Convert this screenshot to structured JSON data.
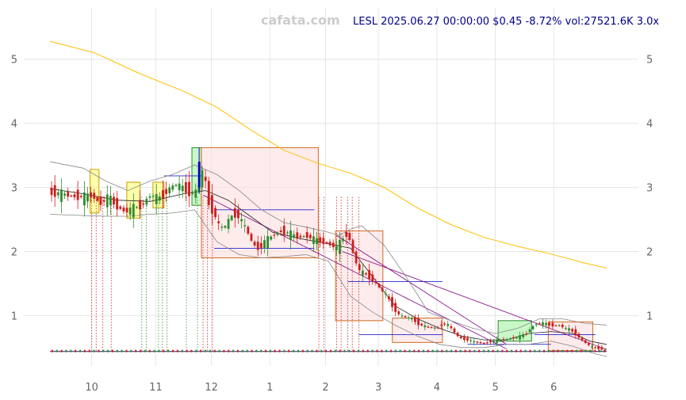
{
  "header": {
    "watermark": "cafata.com",
    "ticker_info": "LESL 2025.06.27 00:00:00 $0.45 -8.72% vol:27521.6K 3.0x"
  },
  "chart_data": {
    "type": "candlestick",
    "x_ticks": [
      "10",
      "11",
      "12",
      "1",
      "2",
      "3",
      "4",
      "5",
      "6"
    ],
    "y_ticks": [
      1,
      2,
      3,
      4,
      5
    ],
    "ylim": [
      0.3,
      5.8
    ],
    "xlim": [
      0,
      100
    ],
    "grid": true,
    "colors": {
      "up": "#2e8b2e",
      "down": "#d01c1c",
      "ma_long": "#ffc000",
      "ma_short": "#222222",
      "band": "#888888",
      "diag": "#800080",
      "level": "#0000cc"
    },
    "price_path": [
      [
        0,
        2.92
      ],
      [
        2,
        2.9
      ],
      [
        4,
        2.86
      ],
      [
        6,
        2.85
      ],
      [
        7.5,
        2.88
      ],
      [
        9,
        2.75
      ],
      [
        10.5,
        2.85
      ],
      [
        12,
        2.7
      ],
      [
        13.5,
        2.62
      ],
      [
        15,
        2.68
      ],
      [
        16.5,
        2.72
      ],
      [
        18,
        2.88
      ],
      [
        19.5,
        2.82
      ],
      [
        21,
        2.95
      ],
      [
        22.5,
        3.05
      ],
      [
        24,
        2.98
      ],
      [
        25.5,
        2.9
      ],
      [
        26.5,
        2.95
      ],
      [
        27.5,
        3.3
      ],
      [
        28.5,
        2.75
      ],
      [
        29.5,
        2.6
      ],
      [
        30.5,
        2.35
      ],
      [
        31.5,
        2.4
      ],
      [
        32.5,
        2.55
      ],
      [
        33.5,
        2.6
      ],
      [
        34.5,
        2.45
      ],
      [
        35.5,
        2.3
      ],
      [
        36.5,
        2.1
      ],
      [
        37.5,
        2.05
      ],
      [
        38.5,
        2.15
      ],
      [
        40,
        2.25
      ],
      [
        41.5,
        2.32
      ],
      [
        43,
        2.28
      ],
      [
        44.5,
        2.22
      ],
      [
        46,
        2.25
      ],
      [
        47.5,
        2.18
      ],
      [
        49,
        2.15
      ],
      [
        50.5,
        2.1
      ],
      [
        51.5,
        2.05
      ],
      [
        52.5,
        2.2
      ],
      [
        53.5,
        2.3
      ],
      [
        54.5,
        1.95
      ],
      [
        55.5,
        1.7
      ],
      [
        56.5,
        1.65
      ],
      [
        57.5,
        1.6
      ],
      [
        58.5,
        1.5
      ],
      [
        59.5,
        1.4
      ],
      [
        60.5,
        1.3
      ],
      [
        61.5,
        1.15
      ],
      [
        62.5,
        1.02
      ],
      [
        63.5,
        0.98
      ],
      [
        65,
        0.95
      ],
      [
        66.5,
        0.85
      ],
      [
        68,
        0.82
      ],
      [
        69.5,
        0.8
      ],
      [
        70.5,
        0.88
      ],
      [
        71.5,
        0.85
      ],
      [
        72.5,
        0.75
      ],
      [
        73.5,
        0.65
      ],
      [
        75,
        0.62
      ],
      [
        76.5,
        0.58
      ],
      [
        78,
        0.57
      ],
      [
        79.5,
        0.6
      ],
      [
        81,
        0.62
      ],
      [
        82.5,
        0.64
      ],
      [
        84,
        0.66
      ],
      [
        85.5,
        0.72
      ],
      [
        86.5,
        0.82
      ],
      [
        87.5,
        0.88
      ],
      [
        88.5,
        0.88
      ],
      [
        89.5,
        0.86
      ],
      [
        90.5,
        0.84
      ],
      [
        91.5,
        0.85
      ],
      [
        92.5,
        0.8
      ],
      [
        93.5,
        0.78
      ],
      [
        94.5,
        0.7
      ],
      [
        95.5,
        0.62
      ],
      [
        96.5,
        0.55
      ],
      [
        97.5,
        0.5
      ],
      [
        98.5,
        0.49
      ],
      [
        99.5,
        0.47
      ],
      [
        100,
        0.45
      ]
    ],
    "ma_long": [
      [
        0,
        5.28
      ],
      [
        8,
        5.1
      ],
      [
        16,
        4.78
      ],
      [
        24,
        4.5
      ],
      [
        30,
        4.25
      ],
      [
        36,
        3.9
      ],
      [
        42,
        3.58
      ],
      [
        48,
        3.38
      ],
      [
        54,
        3.22
      ],
      [
        60,
        3.0
      ],
      [
        66,
        2.68
      ],
      [
        72,
        2.42
      ],
      [
        78,
        2.22
      ],
      [
        84,
        2.08
      ],
      [
        90,
        1.96
      ],
      [
        96,
        1.82
      ],
      [
        100,
        1.74
      ]
    ],
    "ma_short": [
      [
        0,
        2.98
      ],
      [
        6,
        2.9
      ],
      [
        12,
        2.8
      ],
      [
        18,
        2.78
      ],
      [
        24,
        2.9
      ],
      [
        28,
        2.95
      ],
      [
        32,
        2.8
      ],
      [
        36,
        2.55
      ],
      [
        40,
        2.3
      ],
      [
        45,
        2.2
      ],
      [
        50,
        2.12
      ],
      [
        54,
        2.05
      ],
      [
        58,
        1.6
      ],
      [
        62,
        1.15
      ],
      [
        66,
        0.95
      ],
      [
        70,
        0.8
      ],
      [
        74,
        0.68
      ],
      [
        78,
        0.62
      ],
      [
        82,
        0.62
      ],
      [
        86,
        0.72
      ],
      [
        90,
        0.75
      ],
      [
        94,
        0.72
      ],
      [
        97,
        0.6
      ],
      [
        100,
        0.55
      ]
    ],
    "band_upper": [
      [
        0,
        3.4
      ],
      [
        6,
        3.3
      ],
      [
        10,
        3.1
      ],
      [
        14,
        2.95
      ],
      [
        18,
        3.1
      ],
      [
        22,
        3.2
      ],
      [
        26,
        3.35
      ],
      [
        30,
        3.2
      ],
      [
        34,
        2.95
      ],
      [
        38,
        2.65
      ],
      [
        42,
        2.45
      ],
      [
        46,
        2.38
      ],
      [
        50,
        2.3
      ],
      [
        52,
        2.25
      ],
      [
        54,
        2.35
      ],
      [
        56,
        2.4
      ],
      [
        60,
        2.1
      ],
      [
        64,
        1.6
      ],
      [
        68,
        1.05
      ],
      [
        72,
        0.92
      ],
      [
        76,
        0.8
      ],
      [
        80,
        0.72
      ],
      [
        84,
        0.8
      ],
      [
        88,
        0.95
      ],
      [
        92,
        0.95
      ],
      [
        96,
        0.88
      ],
      [
        100,
        0.85
      ]
    ],
    "band_lower": [
      [
        0,
        2.58
      ],
      [
        6,
        2.56
      ],
      [
        10,
        2.55
      ],
      [
        14,
        2.55
      ],
      [
        18,
        2.58
      ],
      [
        22,
        2.6
      ],
      [
        26,
        2.65
      ],
      [
        30,
        2.15
      ],
      [
        34,
        1.95
      ],
      [
        38,
        1.9
      ],
      [
        42,
        1.92
      ],
      [
        46,
        1.95
      ],
      [
        50,
        1.85
      ],
      [
        54,
        1.3
      ],
      [
        58,
        1.05
      ],
      [
        62,
        0.85
      ],
      [
        66,
        0.68
      ],
      [
        70,
        0.55
      ],
      [
        74,
        0.5
      ],
      [
        78,
        0.5
      ],
      [
        82,
        0.55
      ],
      [
        86,
        0.55
      ],
      [
        90,
        0.6
      ],
      [
        94,
        0.52
      ],
      [
        98,
        0.4
      ],
      [
        100,
        0.36
      ]
    ],
    "boxes": [
      {
        "x0": 7.2,
        "x1": 8.8,
        "y0": 2.6,
        "y1": 3.28,
        "kind": "yellow"
      },
      {
        "x0": 13.8,
        "x1": 16.2,
        "y0": 2.52,
        "y1": 3.08,
        "kind": "yellow"
      },
      {
        "x0": 18.5,
        "x1": 20.5,
        "y0": 2.68,
        "y1": 3.08,
        "kind": "yellow"
      },
      {
        "x0": 25.5,
        "x1": 27.2,
        "y0": 2.72,
        "y1": 3.62,
        "kind": "green"
      },
      {
        "x0": 27.2,
        "x1": 48.2,
        "y0": 1.9,
        "y1": 3.62,
        "kind": "red"
      },
      {
        "x0": 51.3,
        "x1": 59.8,
        "y0": 0.92,
        "y1": 2.32,
        "kind": "red"
      },
      {
        "x0": 61.5,
        "x1": 70.5,
        "y0": 0.58,
        "y1": 0.96,
        "kind": "red"
      },
      {
        "x0": 80.5,
        "x1": 86.5,
        "y0": 0.6,
        "y1": 0.92,
        "kind": "green"
      },
      {
        "x0": 89.5,
        "x1": 97.5,
        "y0": 0.45,
        "y1": 0.9,
        "kind": "red"
      }
    ],
    "levels": [
      {
        "x0": 20.5,
        "x1": 27.5,
        "y": 3.18
      },
      {
        "x0": 29.5,
        "x1": 47.5,
        "y": 2.65
      },
      {
        "x0": 29.5,
        "x1": 47.5,
        "y": 2.05
      },
      {
        "x0": 53.5,
        "x1": 70.5,
        "y": 1.53
      },
      {
        "x0": 55.5,
        "x1": 70.5,
        "y": 0.7
      },
      {
        "x0": 87,
        "x1": 98,
        "y": 0.7
      },
      {
        "x0": 75,
        "x1": 90,
        "y": 0.55
      }
    ],
    "diagonals": [
      {
        "x0": 27.5,
        "x1": 82,
        "y0": 2.88,
        "y1": 0.48
      },
      {
        "x0": 51.5,
        "x1": 82,
        "y0": 2.25,
        "y1": 0.55
      },
      {
        "x0": 52.5,
        "x1": 100,
        "y0": 2.0,
        "y1": 0.47
      }
    ],
    "signals": [
      {
        "x": 7.5,
        "c": "red"
      },
      {
        "x": 8.3,
        "c": "red"
      },
      {
        "x": 9.5,
        "c": "red"
      },
      {
        "x": 11,
        "c": "red"
      },
      {
        "x": 16.5,
        "c": "green"
      },
      {
        "x": 17.3,
        "c": "green"
      },
      {
        "x": 19.5,
        "c": "green"
      },
      {
        "x": 20.2,
        "c": "green"
      },
      {
        "x": 21,
        "c": "green"
      },
      {
        "x": 24.5,
        "c": "green"
      },
      {
        "x": 26.5,
        "c": "green"
      },
      {
        "x": 27.5,
        "c": "red"
      },
      {
        "x": 28.3,
        "c": "red"
      },
      {
        "x": 29.2,
        "c": "red"
      },
      {
        "x": 48.3,
        "c": "red"
      },
      {
        "x": 49.2,
        "c": "red"
      },
      {
        "x": 51.5,
        "c": "red"
      },
      {
        "x": 52.3,
        "c": "red"
      },
      {
        "x": 53.5,
        "c": "red"
      },
      {
        "x": 54.3,
        "c": "red"
      },
      {
        "x": 55.5,
        "c": "red"
      }
    ],
    "volume_level": 0.44
  }
}
